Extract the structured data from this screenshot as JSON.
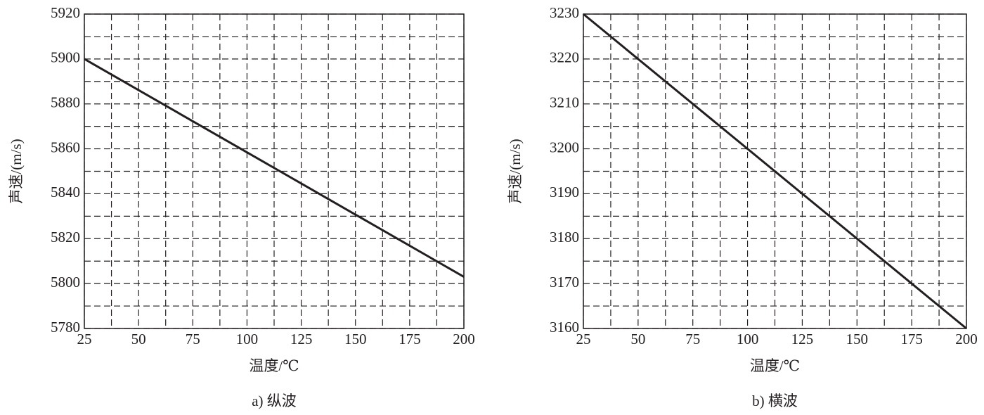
{
  "chart_data": [
    {
      "type": "line",
      "caption": "a) 纵波",
      "x_label": "温度/℃",
      "y_label": "声速/(m/s)",
      "x": [
        25,
        200
      ],
      "series": [
        {
          "color": "#231f20",
          "values": [
            5900,
            5803
          ]
        }
      ],
      "xlim": [
        25,
        200
      ],
      "xticks": [
        25,
        50,
        75,
        100,
        125,
        150,
        175,
        200
      ],
      "ylim": [
        5780,
        5920
      ],
      "yticks": [
        5780,
        5800,
        5820,
        5840,
        5860,
        5880,
        5900,
        5920
      ],
      "grid": true,
      "minor_grid": true
    },
    {
      "type": "line",
      "caption": "b) 横波",
      "x_label": "温度/℃",
      "y_label": "声速/(m/s)",
      "x": [
        25,
        200
      ],
      "series": [
        {
          "color": "#231f20",
          "values": [
            3230,
            3160
          ]
        }
      ],
      "xlim": [
        25,
        200
      ],
      "xticks": [
        25,
        50,
        75,
        100,
        125,
        150,
        175,
        200
      ],
      "ylim": [
        3160,
        3230
      ],
      "yticks": [
        3160,
        3170,
        3180,
        3190,
        3200,
        3210,
        3220,
        3230
      ],
      "grid": true,
      "minor_grid": true
    }
  ]
}
